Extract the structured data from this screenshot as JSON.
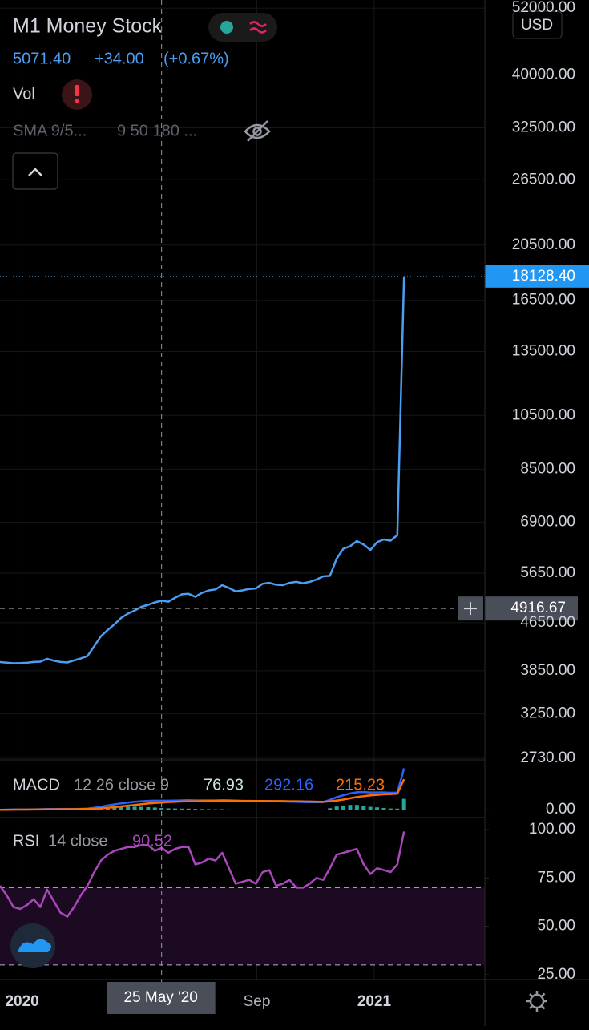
{
  "header": {
    "title": "M1 Money Stock",
    "price": "5071.40",
    "change": "+34.00",
    "change_pct": "(+0.67%)",
    "vol": "Vol",
    "sma": "SMA 9/5...",
    "sma_params": "9 50 180 ...",
    "currency": "USD"
  },
  "chart_data": [
    {
      "type": "line",
      "log_scale": true,
      "grid": true,
      "x": [
        "2019-12-09",
        "2019-12-16",
        "2019-12-23",
        "2019-12-30",
        "2020-01-06",
        "2020-01-13",
        "2020-01-20",
        "2020-01-27",
        "2020-02-03",
        "2020-02-10",
        "2020-02-17",
        "2020-02-24",
        "2020-03-02",
        "2020-03-09",
        "2020-03-16",
        "2020-03-23",
        "2020-03-30",
        "2020-04-06",
        "2020-04-13",
        "2020-04-20",
        "2020-04-27",
        "2020-05-04",
        "2020-05-11",
        "2020-05-18",
        "2020-05-25",
        "2020-06-01",
        "2020-06-08",
        "2020-06-15",
        "2020-06-22",
        "2020-06-29",
        "2020-07-06",
        "2020-07-13",
        "2020-07-20",
        "2020-07-27",
        "2020-08-03",
        "2020-08-10",
        "2020-08-17",
        "2020-08-24",
        "2020-08-31",
        "2020-09-07",
        "2020-09-14",
        "2020-09-21",
        "2020-09-28",
        "2020-10-05",
        "2020-10-12",
        "2020-10-19",
        "2020-10-26",
        "2020-11-02",
        "2020-11-09",
        "2020-11-16",
        "2020-11-23",
        "2020-11-30",
        "2020-12-07",
        "2020-12-14",
        "2020-12-21",
        "2020-12-28",
        "2021-01-04",
        "2021-01-11",
        "2021-01-18",
        "2021-01-25",
        "2021-02-01"
      ],
      "series": [
        {
          "color": "#4a9ff5",
          "values": [
            3984,
            3975,
            3965,
            3968,
            3972,
            3985,
            3990,
            4035,
            4005,
            3985,
            3978,
            4010,
            4040,
            4080,
            4240,
            4410,
            4520,
            4620,
            4740,
            4820,
            4880,
            4950,
            4990,
            5037.4,
            5071.4,
            5050,
            5130,
            5200,
            5210,
            5150,
            5230,
            5280,
            5300,
            5390,
            5330,
            5260,
            5280,
            5310,
            5320,
            5420,
            5440,
            5400,
            5390,
            5440,
            5460,
            5430,
            5460,
            5510,
            5580,
            5590,
            5980,
            6220,
            6280,
            6410,
            6320,
            6190,
            6380,
            6450,
            6420,
            6560,
            18128.4
          ]
        }
      ],
      "last_label": "18128.40",
      "xlim": [
        "2019-12-09",
        "2021-04-26"
      ],
      "xticks": [
        {
          "value": "2020-01-01",
          "label": "2020"
        },
        {
          "value": "2020-09-01",
          "label": "Sep"
        },
        {
          "value": "2021-01-01",
          "label": "2021"
        }
      ],
      "ylim": [
        2730,
        53700
      ],
      "yticks": [
        {
          "value": 52000,
          "label": "52000.00"
        },
        {
          "value": 40000,
          "label": "40000.00"
        },
        {
          "value": 32500,
          "label": "32500.00"
        },
        {
          "value": 26500,
          "label": "26500.00"
        },
        {
          "value": 20500,
          "label": "20500.00"
        },
        {
          "value": 16500,
          "label": "16500.00"
        },
        {
          "value": 13500,
          "label": "13500.00"
        },
        {
          "value": 10500,
          "label": "10500.00"
        },
        {
          "value": 8500,
          "label": "8500.00"
        },
        {
          "value": 6900,
          "label": "6900.00"
        },
        {
          "value": 5650,
          "label": "5650.00"
        },
        {
          "value": 4650,
          "label": "4650.00"
        },
        {
          "value": 3850,
          "label": "3850.00"
        },
        {
          "value": 3250,
          "label": "3250.00"
        },
        {
          "value": 2730,
          "label": "2730.00"
        }
      ],
      "crosshair": {
        "x": {
          "value": "2020-05-25",
          "label": "25 May '20"
        },
        "y": {
          "value": 4916.67,
          "label": "4916.67"
        }
      }
    },
    {
      "type": "macd",
      "title": "MACD",
      "params": "12 26 close 9",
      "series": [
        {
          "kind": "histogram",
          "color": "#26a69a",
          "down_color": "#ef5350",
          "legend_value": "76.93",
          "values": [
            0,
            1,
            0,
            1,
            1,
            1,
            2,
            2,
            2,
            1,
            1,
            1,
            1,
            3,
            7,
            12,
            16,
            20,
            21,
            22,
            22,
            21,
            19,
            16,
            13,
            10,
            9,
            8,
            8,
            6,
            5,
            4,
            3,
            4,
            2,
            0,
            -1,
            -2,
            -3,
            -2,
            0,
            -1,
            -3,
            -3,
            -4,
            -5,
            -5,
            -4,
            -2,
            11,
            23,
            30,
            34,
            34,
            29,
            21,
            17,
            13,
            9,
            8,
            76.93
          ]
        },
        {
          "color": "#2962ff",
          "legend_value": "292.16",
          "values": [
            0,
            1,
            1,
            2,
            2,
            3,
            4,
            5,
            5,
            5,
            5,
            5,
            6,
            8,
            14,
            22,
            30,
            38,
            45,
            51,
            56,
            60,
            63,
            64,
            64,
            64,
            65,
            66,
            67,
            66,
            66,
            66,
            66,
            67,
            66,
            64,
            62,
            61,
            59,
            60,
            61,
            60,
            58,
            57,
            56,
            54,
            53,
            53,
            54,
            70,
            88,
            102,
            115,
            123,
            125,
            122,
            122,
            122,
            120,
            121,
            292.16
          ]
        },
        {
          "color": "#ff6d00",
          "legend_value": "215.23",
          "values": [
            0,
            0,
            1,
            1,
            1,
            2,
            2,
            3,
            3,
            4,
            4,
            4,
            5,
            5,
            7,
            10,
            14,
            18,
            24,
            29,
            34,
            39,
            44,
            48,
            51,
            54,
            56,
            58,
            59,
            60,
            61,
            62,
            63,
            63,
            64,
            64,
            63,
            63,
            62,
            62,
            61,
            61,
            61,
            60,
            60,
            59,
            58,
            57,
            56,
            59,
            65,
            72,
            81,
            89,
            96,
            101,
            105,
            109,
            111,
            113,
            215.23
          ]
        }
      ],
      "ylim": [
        -44,
        340
      ],
      "yticks": [
        {
          "value": 0,
          "label": "0.00"
        }
      ]
    },
    {
      "type": "line",
      "title": "RSI",
      "params": "14 close",
      "legend_value": "90.52",
      "series": [
        {
          "color": "#ab47bc",
          "values": [
            71,
            66,
            60,
            59,
            61,
            64,
            60,
            69,
            63,
            57,
            55,
            60,
            66,
            71,
            78,
            84,
            87,
            89,
            90,
            91,
            91,
            92,
            92,
            89,
            90.52,
            88,
            90,
            91,
            91,
            82,
            83,
            85,
            84,
            88,
            80,
            72,
            73,
            74,
            72,
            78,
            79,
            71,
            72,
            74,
            70,
            70,
            72,
            75,
            74,
            80,
            87,
            88,
            89,
            90,
            82,
            77,
            80,
            79,
            78,
            82,
            99
          ]
        }
      ],
      "band": [
        30,
        70
      ],
      "band_color": "#1b0a22",
      "ylim": [
        22.5,
        106.2
      ],
      "yticks": [
        {
          "value": 100,
          "label": "100.00"
        },
        {
          "value": 75,
          "label": "75.00"
        },
        {
          "value": 50,
          "label": "50.00"
        },
        {
          "value": 25,
          "label": "25.00"
        }
      ]
    }
  ]
}
